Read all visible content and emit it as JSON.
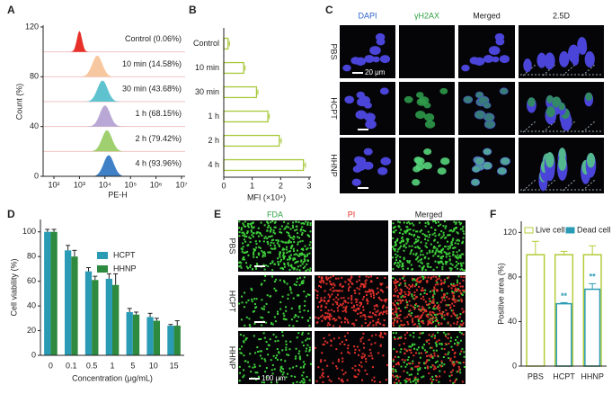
{
  "chart_data": [
    {
      "type": "ridgeline",
      "panel": "A",
      "ylabel": "Count (%)",
      "xlabel": "PE-H",
      "xscale": "log",
      "xlim": [
        100,
        10000000
      ],
      "xticks": [
        {
          "value": 100,
          "label": "10²"
        },
        {
          "value": 1000,
          "label": "10³"
        },
        {
          "value": 10000,
          "label": "10⁴"
        },
        {
          "value": 100000,
          "label": "10⁵"
        },
        {
          "value": 1000000,
          "label": "10⁶"
        },
        {
          "value": 10000000,
          "label": "10⁷"
        }
      ],
      "ylim": [
        0,
        120
      ],
      "yticks": [
        0,
        40,
        80,
        120
      ],
      "series": [
        {
          "name": "Control (0.06%)",
          "color": "#e8302a",
          "peak": 1000
        },
        {
          "name": "10 min (14.58%)",
          "color": "#f7c8a0",
          "peak": 5000
        },
        {
          "name": "30 min (43.68%)",
          "color": "#5fc3cf",
          "peak": 8000
        },
        {
          "name": "1 h (68.15%)",
          "color": "#b9a8d6",
          "peak": 10000
        },
        {
          "name": "2 h (79.42%)",
          "color": "#9fcf6e",
          "peak": 12000
        },
        {
          "name": "4 h (93.96%)",
          "color": "#3f80c6",
          "peak": 14000
        }
      ]
    },
    {
      "type": "hbar",
      "panel": "B",
      "xlabel": "MFI (×10⁴)",
      "categories": [
        "Control",
        "10 min",
        "30 min",
        "1 h",
        "2 h",
        "4 h"
      ],
      "values": [
        0.15,
        0.7,
        1.15,
        1.55,
        1.95,
        2.8
      ],
      "errors": [
        0.05,
        0.05,
        0.05,
        0.05,
        0.07,
        0.07
      ],
      "color": "#a8c93a",
      "xlim": [
        0,
        3
      ],
      "xticks": [
        0,
        1,
        2,
        3
      ]
    },
    {
      "type": "image-grid",
      "panel": "C",
      "columns": [
        "DAPI",
        "γH2AX",
        "Merged",
        "2.5D"
      ],
      "rows": [
        "PBS",
        "HCPT",
        "HHNP"
      ],
      "scale_bar": "20 μm"
    },
    {
      "type": "grouped-bar",
      "panel": "D",
      "ylabel": "Cell viability (%)",
      "xlabel": "Concentration (μg/mL)",
      "categories": [
        "0",
        "0.1",
        "0.5",
        "1",
        "5",
        "10",
        "15"
      ],
      "ylim": [
        0,
        110
      ],
      "yticks": [
        0,
        20,
        40,
        60,
        80,
        100
      ],
      "series": [
        {
          "name": "HCPT",
          "color": "#2a9bb5",
          "values": [
            100,
            85,
            68,
            62,
            35,
            31,
            24
          ],
          "errors": [
            2,
            4,
            3,
            4,
            3,
            3,
            1
          ]
        },
        {
          "name": "HHNP",
          "color": "#2e8a3f",
          "values": [
            100,
            80,
            61,
            57,
            33,
            28,
            24
          ],
          "errors": [
            2,
            5,
            3,
            9,
            2,
            2,
            4
          ]
        }
      ]
    },
    {
      "type": "image-grid",
      "panel": "E",
      "columns": [
        "FDA",
        "PI",
        "Merged"
      ],
      "rows": [
        "PBS",
        "HCPT",
        "HHNP"
      ],
      "scale_bar": "100 μm"
    },
    {
      "type": "overlay-bar",
      "panel": "F",
      "ylabel": "Positive area (%)",
      "categories": [
        "PBS",
        "HCPT",
        "HHNP"
      ],
      "ylim": [
        0,
        130
      ],
      "yticks": [
        0,
        40,
        80,
        120
      ],
      "series": [
        {
          "name": "Live cell",
          "color": "#b5cc3a",
          "values": [
            100,
            100,
            100
          ],
          "errors": [
            12,
            3,
            8
          ]
        },
        {
          "name": "Dead cell",
          "color": "#2a9bb5",
          "values": [
            0,
            56,
            69
          ],
          "errors": [
            0,
            1,
            5
          ]
        }
      ],
      "annotations": [
        null,
        "**",
        "**"
      ]
    }
  ]
}
